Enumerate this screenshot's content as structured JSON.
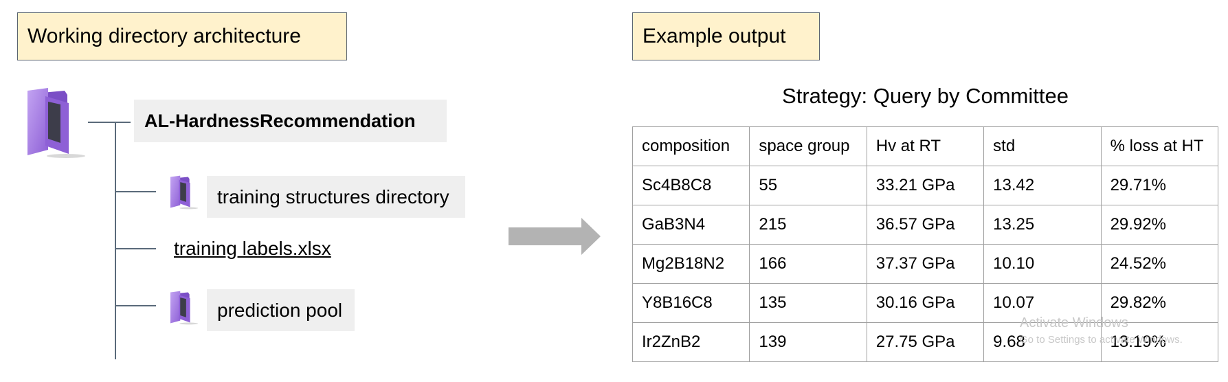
{
  "left_panel": {
    "title": "Working directory architecture",
    "root_folder_name": "AL-HardnessRecommendation",
    "items": [
      {
        "label": "training structures directory",
        "kind": "folder"
      },
      {
        "label": "training labels.xlsx",
        "kind": "file"
      },
      {
        "label": "prediction pool",
        "kind": "folder"
      }
    ]
  },
  "right_panel": {
    "title": "Example output",
    "strategy": "Strategy: Query by Committee",
    "table": {
      "headers": [
        "composition",
        "space group",
        "Hv at RT",
        "std",
        "% loss at HT"
      ],
      "rows": [
        [
          "Sc4B8C8",
          "55",
          "33.21 GPa",
          "13.42",
          "29.71%"
        ],
        [
          "GaB3N4",
          "215",
          "36.57 GPa",
          "13.25",
          "29.92%"
        ],
        [
          "Mg2B18N2",
          "166",
          "37.37 GPa",
          "10.10",
          "24.52%"
        ],
        [
          "Y8B16C8",
          "135",
          "30.16 GPa",
          "10.07",
          "29.82%"
        ],
        [
          "Ir2ZnB2",
          "139",
          "27.75 GPa",
          "9.68",
          "13.19%"
        ]
      ]
    }
  },
  "watermark": {
    "line1": "Activate Windows",
    "line2": "Go to Settings to activate Windows."
  },
  "colors": {
    "label_bg": "#fff2cc",
    "folder": "#a77de0",
    "arrow": "#b3b3b3"
  },
  "icons": [
    "folder-icon",
    "right-arrow-icon"
  ]
}
